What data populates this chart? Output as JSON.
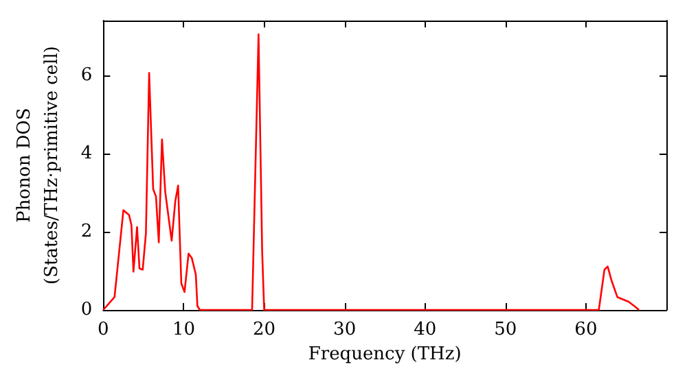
{
  "chart_data": {
    "type": "line",
    "xlabel": "Frequency (THz)",
    "ylabel": "Phonon DOS\n(States/THz·primitive cell)",
    "x": [
      0,
      1.4,
      2.5,
      3.2,
      3.5,
      3.75,
      4.2,
      4.5,
      4.9,
      5.3,
      5.7,
      6.2,
      6.55,
      6.9,
      7.3,
      7.7,
      8.5,
      8.95,
      9.3,
      9.7,
      10.1,
      10.6,
      11.0,
      11.5,
      11.7,
      12.0,
      18.5,
      19.3,
      19.75,
      20.0,
      61.6,
      62.3,
      62.7,
      63.2,
      63.9,
      65.3,
      66.0,
      66.6
    ],
    "series": [
      {
        "color": "#ff0000",
        "values": [
          0,
          0.33,
          2.55,
          2.43,
          2.17,
          0.98,
          2.12,
          1.06,
          1.03,
          1.96,
          6.06,
          3.09,
          2.9,
          1.73,
          4.36,
          3.02,
          1.77,
          2.78,
          3.18,
          0.68,
          0.46,
          1.44,
          1.33,
          0.91,
          0.1,
          0,
          0,
          7.05,
          1.5,
          0,
          0,
          1.03,
          1.11,
          0.74,
          0.33,
          0.21,
          0.1,
          0
        ]
      }
    ],
    "xlim": [
      0,
      70
    ],
    "xticks": [
      0,
      10,
      20,
      30,
      40,
      50,
      60
    ],
    "ylim": [
      0,
      7.4
    ],
    "yticks": [
      0,
      2,
      4,
      6
    ],
    "grid": false,
    "marker": "none",
    "line_style": "solid"
  }
}
